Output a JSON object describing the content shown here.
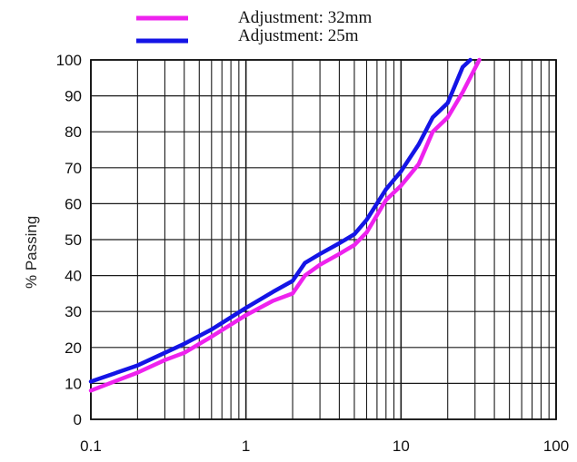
{
  "chart_data": {
    "type": "line",
    "x_scale": "log",
    "xlim": [
      0.1,
      100
    ],
    "ylim": [
      0,
      100
    ],
    "grid": true,
    "legend_position": "top",
    "xlabel": "",
    "ylabel": "% Passing",
    "x_tick_labels": [
      "0.1",
      "1",
      "10",
      "100"
    ],
    "x_tick_values": [
      0.1,
      1,
      10,
      100
    ],
    "y_tick_labels": [
      "0",
      "10",
      "20",
      "30",
      "40",
      "50",
      "60",
      "70",
      "80",
      "90",
      "100"
    ],
    "y_tick_values": [
      0,
      10,
      20,
      30,
      40,
      50,
      60,
      70,
      80,
      90,
      100
    ],
    "series": [
      {
        "name": "Adjustment: 32mm",
        "color": "#ee22ee",
        "x": [
          0.1,
          0.2,
          0.3,
          0.4,
          0.6,
          1,
          1.5,
          2,
          2.4,
          3,
          4,
          5,
          6,
          8,
          10,
          13,
          16,
          20,
          25,
          32
        ],
        "y": [
          8,
          13,
          16.5,
          18.5,
          23,
          29,
          33,
          35,
          40,
          43,
          46,
          48.5,
          52,
          61,
          65,
          71,
          80,
          84,
          91,
          100
        ]
      },
      {
        "name": "Adjustment: 25m",
        "color": "#1414e6",
        "x": [
          0.1,
          0.2,
          0.3,
          0.4,
          0.6,
          1,
          1.5,
          2,
          2.4,
          3,
          4,
          5,
          6,
          8,
          10,
          13,
          16,
          20,
          25,
          28
        ],
        "y": [
          10.5,
          15,
          18.5,
          21,
          25,
          31,
          35.5,
          38.5,
          43.5,
          46,
          49,
          51.5,
          55.5,
          64,
          69,
          76.5,
          84,
          88,
          98,
          100
        ]
      }
    ]
  }
}
